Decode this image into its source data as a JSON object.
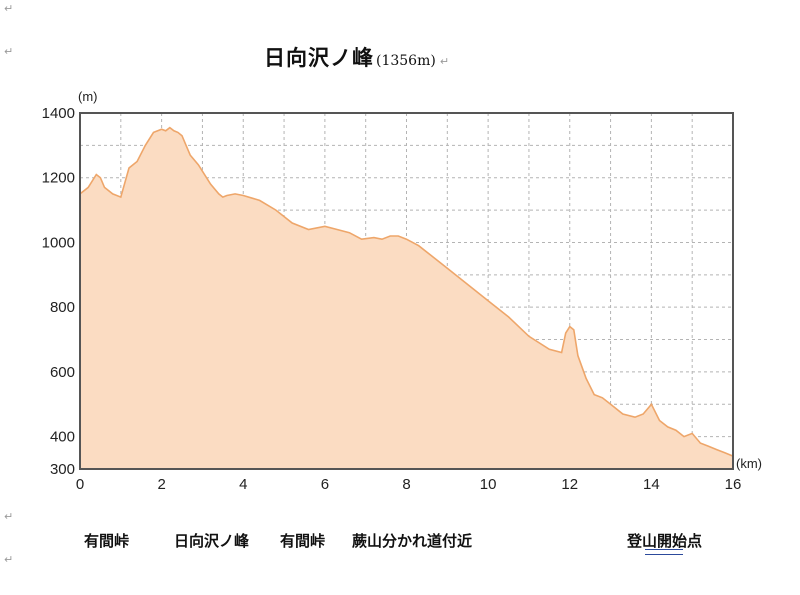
{
  "page": {
    "title": "日向沢ノ峰",
    "subtitle": "(1356m)",
    "paragraph_mark": "↵",
    "captions": [
      "有間峠",
      "日向沢ノ峰",
      "有間峠",
      "蕨山分かれ道付近",
      "登山開始点"
    ]
  },
  "colors": {
    "fill": "#fbdcc2",
    "line": "#eea66a",
    "grid": "#b4b4b4",
    "frame": "#555555"
  },
  "chart_data": {
    "type": "area",
    "title": "",
    "xlabel": "(km)",
    "ylabel": "(m)",
    "xlim": [
      0,
      16
    ],
    "ylim": [
      300,
      1400
    ],
    "x_ticks": [
      0,
      2,
      4,
      6,
      8,
      10,
      12,
      14,
      16
    ],
    "y_ticks": [
      300,
      400,
      600,
      800,
      1000,
      1200,
      1400
    ],
    "grid": true,
    "series": [
      {
        "x": [
          0,
          0.2,
          0.4,
          0.5,
          0.6,
          0.8,
          1.0,
          1.2,
          1.4,
          1.6,
          1.8,
          2.0,
          2.1,
          2.2,
          2.3,
          2.4,
          2.5,
          2.6,
          2.7,
          2.9,
          3.2,
          3.4,
          3.5,
          3.6,
          3.8,
          4.0,
          4.4,
          4.8,
          5.2,
          5.6,
          6.0,
          6.3,
          6.6,
          6.9,
          7.2,
          7.4,
          7.6,
          7.8,
          8.0,
          8.3,
          8.6,
          9.0,
          9.5,
          10.0,
          10.5,
          11.0,
          11.5,
          11.8,
          11.9,
          12.0,
          12.1,
          12.2,
          12.4,
          12.6,
          12.8,
          13.0,
          13.3,
          13.6,
          13.8,
          14.0,
          14.2,
          14.4,
          14.6,
          14.8,
          15.0,
          15.2,
          15.4,
          15.6,
          15.8,
          16.0
        ],
        "values": [
          1150,
          1170,
          1210,
          1200,
          1170,
          1150,
          1140,
          1230,
          1250,
          1300,
          1340,
          1350,
          1345,
          1355,
          1345,
          1340,
          1330,
          1300,
          1270,
          1240,
          1180,
          1150,
          1140,
          1145,
          1150,
          1145,
          1130,
          1100,
          1060,
          1040,
          1050,
          1040,
          1030,
          1010,
          1015,
          1010,
          1020,
          1020,
          1010,
          990,
          960,
          920,
          870,
          820,
          770,
          710,
          670,
          660,
          720,
          740,
          730,
          650,
          580,
          530,
          520,
          500,
          470,
          460,
          470,
          500,
          450,
          430,
          420,
          400,
          410,
          380,
          370,
          360,
          350,
          340
        ]
      }
    ]
  }
}
